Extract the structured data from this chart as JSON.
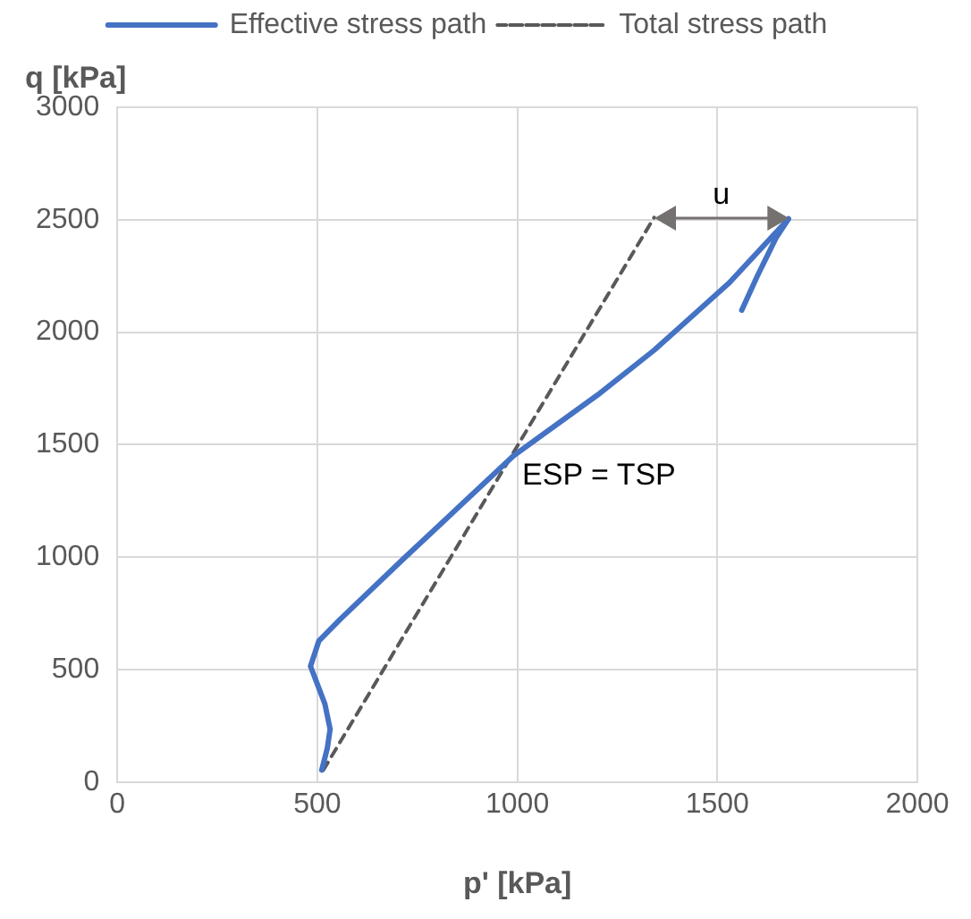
{
  "chart_data": {
    "type": "line",
    "xlabel": "p' [kPa]",
    "ylabel": "q [kPa]",
    "xlim": [
      0,
      2000
    ],
    "xticks": [
      0,
      500,
      1000,
      1500,
      2000
    ],
    "ylim": [
      0,
      3000
    ],
    "yticks": [
      0,
      500,
      1000,
      1500,
      2000,
      2500,
      3000
    ],
    "grid": true,
    "legend": "top",
    "marker": "none",
    "series": [
      {
        "name": "Effective stress path",
        "color": "#4472c4",
        "line_style": "solid",
        "x": [
          511,
          525,
          532,
          519,
          483,
          504,
          558,
          715,
          990,
          1200,
          1342,
          1530,
          1678,
          1647,
          1600,
          1561
        ],
        "values": [
          53,
          150,
          235,
          347,
          515,
          628,
          725,
          992,
          1450,
          1720,
          1920,
          2220,
          2504,
          2420,
          2250,
          2098
        ]
      },
      {
        "name": "Total stress path",
        "color": "#595959",
        "line_style": "dashed",
        "x": [
          515,
          1342
        ],
        "values": [
          53,
          2510
        ]
      }
    ],
    "annotations": [
      "u",
      {
        "text": "ESP = TSP",
        "x": 990,
        "y": 1450
      }
    ]
  }
}
